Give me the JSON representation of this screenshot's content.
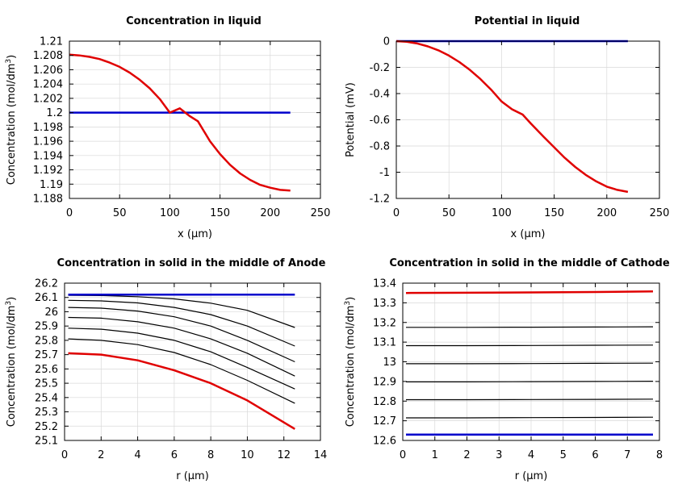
{
  "chart_data": [
    {
      "type": "line",
      "title": "Concentration in liquid",
      "xlabel": "x (µm)",
      "ylabel_main": "Concentration (mol/dm",
      "ylabel_sup": "3",
      "ylabel_end": ")",
      "xlim": [
        0,
        250
      ],
      "ylim": [
        1.188,
        1.21
      ],
      "xticks": [
        0,
        50,
        100,
        150,
        200,
        250
      ],
      "xtick_labels": [
        "0",
        "50",
        "100",
        "150",
        "200",
        "250"
      ],
      "yticks": [
        1.188,
        1.19,
        1.192,
        1.194,
        1.196,
        1.198,
        1.2,
        1.202,
        1.204,
        1.206,
        1.208,
        1.21
      ],
      "ytick_labels": [
        "1.188",
        "1.19",
        "1.192",
        "1.194",
        "1.196",
        "1.198",
        "1.2",
        "1.202",
        "1.204",
        "1.206",
        "1.208",
        "1.21"
      ],
      "grid": true,
      "series": [
        {
          "color": "#0000cc",
          "width": 2.5,
          "x": [
            0,
            220
          ],
          "y": [
            1.2,
            1.2
          ]
        },
        {
          "color": "#e00000",
          "width": 2.5,
          "x": [
            0,
            10,
            20,
            30,
            40,
            50,
            60,
            70,
            80,
            90,
            100,
            110,
            120,
            128,
            140,
            150,
            160,
            170,
            180,
            190,
            200,
            210,
            220
          ],
          "y": [
            1.2081,
            1.208,
            1.2078,
            1.2075,
            1.207,
            1.2064,
            1.2056,
            1.2046,
            1.2034,
            1.2019,
            1.2,
            1.2006,
            1.1995,
            1.1988,
            1.196,
            1.1942,
            1.1927,
            1.1915,
            1.1906,
            1.1899,
            1.1895,
            1.1892,
            1.1891
          ]
        }
      ]
    },
    {
      "type": "line",
      "title": "Potential in liquid",
      "xlabel": "x (µm)",
      "ylabel_main": "Potential (mV)",
      "ylabel_sup": "",
      "ylabel_end": "",
      "xlim": [
        0,
        250
      ],
      "ylim": [
        -1.2,
        0
      ],
      "xticks": [
        0,
        50,
        100,
        150,
        200,
        250
      ],
      "xtick_labels": [
        "0",
        "50",
        "100",
        "150",
        "200",
        "250"
      ],
      "yticks": [
        -1.2,
        -1,
        -0.8,
        -0.6,
        -0.4,
        -0.2,
        0
      ],
      "ytick_labels": [
        "-1.2",
        "-1",
        "-0.8",
        "-0.6",
        "-0.4",
        "-0.2",
        "0"
      ],
      "grid": true,
      "series": [
        {
          "color": "#0000cc",
          "width": 2.5,
          "x": [
            0,
            220
          ],
          "y": [
            0,
            0
          ]
        },
        {
          "color": "#e00000",
          "width": 2.5,
          "x": [
            0,
            10,
            20,
            30,
            40,
            50,
            60,
            70,
            80,
            90,
            100,
            110,
            120,
            128,
            140,
            150,
            160,
            170,
            180,
            190,
            200,
            210,
            220
          ],
          "y": [
            0,
            -0.005,
            -0.018,
            -0.04,
            -0.07,
            -0.11,
            -0.16,
            -0.22,
            -0.29,
            -0.37,
            -0.46,
            -0.52,
            -0.56,
            -0.63,
            -0.73,
            -0.81,
            -0.89,
            -0.96,
            -1.02,
            -1.07,
            -1.11,
            -1.135,
            -1.15
          ]
        }
      ]
    },
    {
      "type": "line",
      "title": "Concentration in solid in the middle of Anode",
      "xlabel": "r (µm)",
      "ylabel_main": "Concentration (mol/dm",
      "ylabel_sup": "3",
      "ylabel_end": ")",
      "xlim": [
        0,
        14
      ],
      "ylim": [
        25.1,
        26.2
      ],
      "xticks": [
        0,
        2,
        4,
        6,
        8,
        10,
        12,
        14
      ],
      "xtick_labels": [
        "0",
        "2",
        "4",
        "6",
        "8",
        "10",
        "12",
        "14"
      ],
      "yticks": [
        25.1,
        25.2,
        25.3,
        25.4,
        25.5,
        25.6,
        25.7,
        25.8,
        25.9,
        26,
        26.1,
        26.2
      ],
      "ytick_labels": [
        "25.1",
        "25.2",
        "25.3",
        "25.4",
        "25.5",
        "25.6",
        "25.7",
        "25.8",
        "25.9",
        "26",
        "26.1",
        "26.2"
      ],
      "grid": true,
      "series": [
        {
          "color": "#000000",
          "width": 1.2,
          "x": [
            0.2,
            2,
            4,
            6,
            8,
            10,
            12.6
          ],
          "y": [
            26.115,
            26.113,
            26.105,
            26.09,
            26.06,
            26.01,
            25.89
          ]
        },
        {
          "color": "#000000",
          "width": 1.2,
          "x": [
            0.2,
            2,
            4,
            6,
            8,
            10,
            12.6
          ],
          "y": [
            26.08,
            26.076,
            26.062,
            26.03,
            25.98,
            25.9,
            25.76
          ]
        },
        {
          "color": "#000000",
          "width": 1.2,
          "x": [
            0.2,
            2,
            4,
            6,
            8,
            10,
            12.6
          ],
          "y": [
            26.03,
            26.025,
            26.005,
            25.965,
            25.9,
            25.8,
            25.65
          ]
        },
        {
          "color": "#000000",
          "width": 1.2,
          "x": [
            0.2,
            2,
            4,
            6,
            8,
            10,
            12.6
          ],
          "y": [
            25.96,
            25.955,
            25.93,
            25.885,
            25.81,
            25.71,
            25.55
          ]
        },
        {
          "color": "#000000",
          "width": 1.2,
          "x": [
            0.2,
            2,
            4,
            6,
            8,
            10,
            12.6
          ],
          "y": [
            25.885,
            25.878,
            25.85,
            25.8,
            25.72,
            25.61,
            25.46
          ]
        },
        {
          "color": "#000000",
          "width": 1.2,
          "x": [
            0.2,
            2,
            4,
            6,
            8,
            10,
            12.6
          ],
          "y": [
            25.81,
            25.8,
            25.77,
            25.715,
            25.63,
            25.52,
            25.36
          ]
        },
        {
          "color": "#0000cc",
          "width": 2.5,
          "x": [
            0.2,
            12.6
          ],
          "y": [
            26.12,
            26.12
          ]
        },
        {
          "color": "#e00000",
          "width": 2.5,
          "x": [
            0.2,
            2,
            4,
            6,
            8,
            10,
            12.6
          ],
          "y": [
            25.71,
            25.7,
            25.66,
            25.59,
            25.5,
            25.38,
            25.18
          ]
        }
      ]
    },
    {
      "type": "line",
      "title": "Concentration in solid in the middle of Cathode",
      "xlabel": "r (µm)",
      "ylabel_main": "Concentration (mol/dm",
      "ylabel_sup": "3",
      "ylabel_end": ")",
      "xlim": [
        0,
        8
      ],
      "ylim": [
        12.6,
        13.4
      ],
      "xticks": [
        0,
        1,
        2,
        3,
        4,
        5,
        6,
        7,
        8
      ],
      "xtick_labels": [
        "0",
        "1",
        "2",
        "3",
        "4",
        "5",
        "6",
        "7",
        "8"
      ],
      "yticks": [
        12.6,
        12.7,
        12.8,
        12.9,
        13,
        13.1,
        13.2,
        13.3,
        13.4
      ],
      "ytick_labels": [
        "12.6",
        "12.7",
        "12.8",
        "12.9",
        "13",
        "13.1",
        "13.2",
        "13.3",
        "13.4"
      ],
      "grid": true,
      "series": [
        {
          "color": "#000000",
          "width": 1.2,
          "x": [
            0.1,
            2,
            4,
            6,
            7.8
          ],
          "y": [
            13.175,
            13.175,
            13.176,
            13.177,
            13.178
          ]
        },
        {
          "color": "#000000",
          "width": 1.2,
          "x": [
            0.1,
            2,
            4,
            6,
            7.8
          ],
          "y": [
            13.082,
            13.082,
            13.083,
            13.084,
            13.085
          ]
        },
        {
          "color": "#000000",
          "width": 1.2,
          "x": [
            0.1,
            2,
            4,
            6,
            7.8
          ],
          "y": [
            12.99,
            12.99,
            12.991,
            12.992,
            12.993
          ]
        },
        {
          "color": "#000000",
          "width": 1.2,
          "x": [
            0.1,
            2,
            4,
            6,
            7.8
          ],
          "y": [
            12.898,
            12.898,
            12.899,
            12.9,
            12.901
          ]
        },
        {
          "color": "#000000",
          "width": 1.2,
          "x": [
            0.1,
            2,
            4,
            6,
            7.8
          ],
          "y": [
            12.807,
            12.807,
            12.808,
            12.809,
            12.81
          ]
        },
        {
          "color": "#000000",
          "width": 1.2,
          "x": [
            0.1,
            2,
            4,
            6,
            7.8
          ],
          "y": [
            12.715,
            12.715,
            12.716,
            12.717,
            12.718
          ]
        },
        {
          "color": "#0000cc",
          "width": 2.5,
          "x": [
            0.1,
            7.8
          ],
          "y": [
            12.63,
            12.63
          ]
        },
        {
          "color": "#e00000",
          "width": 2.5,
          "x": [
            0.1,
            2,
            4,
            6,
            7.8
          ],
          "y": [
            13.35,
            13.351,
            13.353,
            13.355,
            13.358
          ]
        }
      ]
    }
  ]
}
